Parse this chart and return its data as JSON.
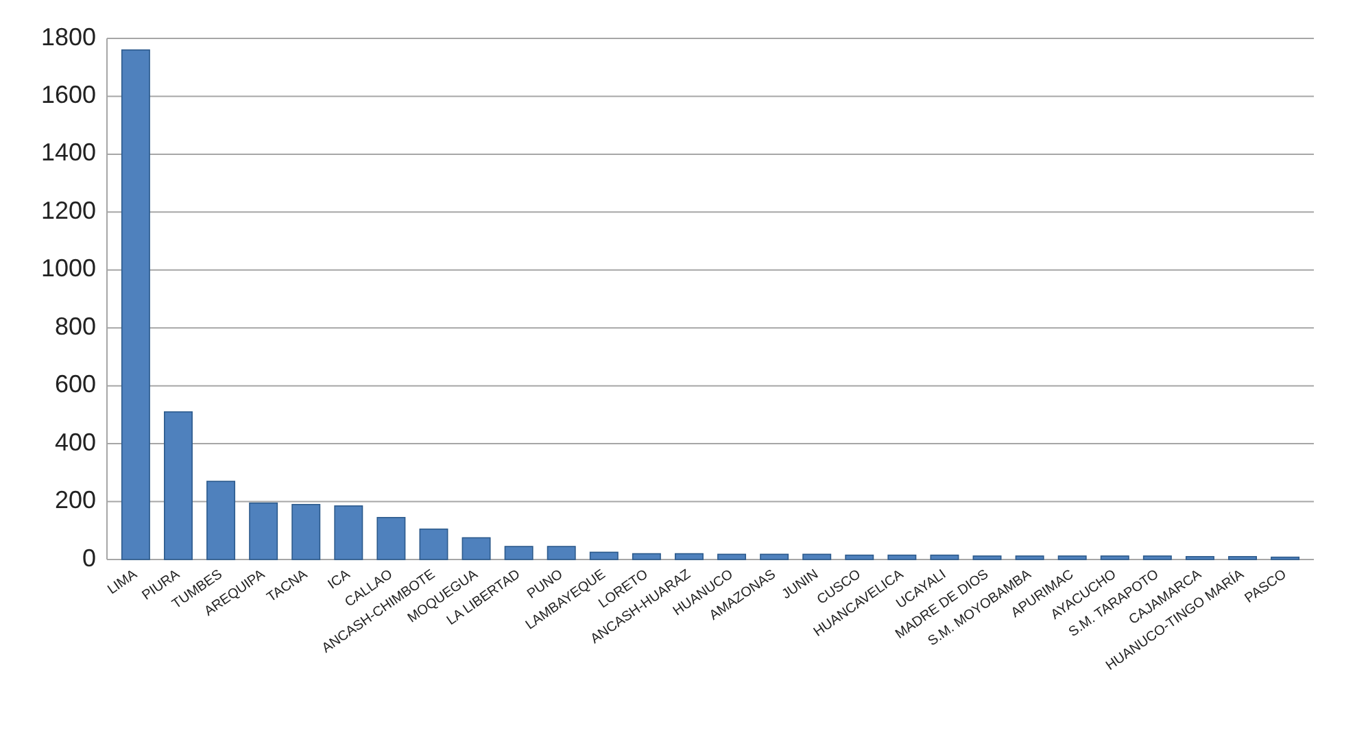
{
  "chart_data": {
    "type": "bar",
    "categories": [
      "LIMA",
      "PIURA",
      "TUMBES",
      "AREQUIPA",
      "TACNA",
      "ICA",
      "CALLAO",
      "ANCASH-CHIMBOTE",
      "MOQUEGUA",
      "LA LIBERTAD",
      "PUNO",
      "LAMBAYEQUE",
      "LORETO",
      "ANCASH-HUARAZ",
      "HUANUCO",
      "AMAZONAS",
      "JUNIN",
      "CUSCO",
      "HUANCAVELICA",
      "UCAYALI",
      "MADRE DE DIOS",
      "S.M. MOYOBAMBA",
      "APURIMAC",
      "AYACUCHO",
      "S.M. TARAPOTO",
      "CAJAMARCA",
      "HUANUCO-TINGO MARÍA",
      "PASCO"
    ],
    "values": [
      1760,
      510,
      270,
      195,
      190,
      185,
      145,
      105,
      75,
      45,
      45,
      25,
      20,
      20,
      18,
      18,
      18,
      15,
      15,
      15,
      12,
      12,
      12,
      12,
      12,
      10,
      10,
      8
    ],
    "color": "#4f81bd",
    "ylim": [
      0,
      1800
    ],
    "yticks": [
      0,
      200,
      400,
      600,
      800,
      1000,
      1200,
      1400,
      1600,
      1800
    ],
    "grid": "y"
  }
}
